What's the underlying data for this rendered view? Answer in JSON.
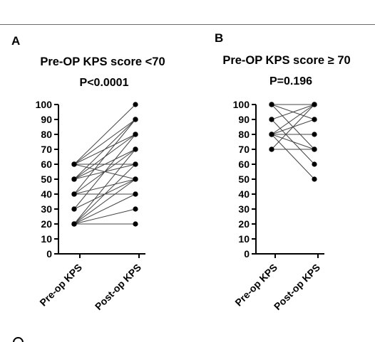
{
  "panels": [
    {
      "letter": "A",
      "title": "Pre-OP KPS score <70",
      "p_value": "P<0.0001"
    },
    {
      "letter": "B",
      "title": "Pre-OP KPS score ≥ 70",
      "p_value": "P=0.196"
    }
  ],
  "chart_data": [
    {
      "type": "line",
      "title": "Pre-OP KPS score <70",
      "subtitle": "P<0.0001",
      "categories": [
        "Pre-op KPS",
        "Post-op KPS"
      ],
      "y_ticks": [
        0,
        10,
        20,
        30,
        40,
        50,
        60,
        70,
        80,
        90,
        100
      ],
      "ylim": [
        0,
        100
      ],
      "grid": false,
      "pairs": [
        [
          60,
          100
        ],
        [
          60,
          90
        ],
        [
          60,
          80
        ],
        [
          60,
          60
        ],
        [
          60,
          50
        ],
        [
          50,
          90
        ],
        [
          50,
          80
        ],
        [
          50,
          70
        ],
        [
          50,
          60
        ],
        [
          40,
          90
        ],
        [
          40,
          70
        ],
        [
          40,
          50
        ],
        [
          40,
          40
        ],
        [
          30,
          80
        ],
        [
          30,
          50
        ],
        [
          20,
          70
        ],
        [
          20,
          60
        ],
        [
          20,
          50
        ],
        [
          20,
          40
        ],
        [
          20,
          30
        ],
        [
          20,
          20
        ]
      ]
    },
    {
      "type": "line",
      "title": "Pre-OP KPS score ≥ 70",
      "subtitle": "P=0.196",
      "categories": [
        "Pre-op KPS",
        "Post-op KPS"
      ],
      "y_ticks": [
        0,
        10,
        20,
        30,
        40,
        50,
        60,
        70,
        80,
        90,
        100
      ],
      "ylim": [
        0,
        100
      ],
      "grid": false,
      "pairs": [
        [
          100,
          100
        ],
        [
          100,
          90
        ],
        [
          100,
          70
        ],
        [
          90,
          100
        ],
        [
          90,
          60
        ],
        [
          80,
          100
        ],
        [
          80,
          90
        ],
        [
          80,
          80
        ],
        [
          80,
          70
        ],
        [
          80,
          50
        ],
        [
          70,
          100
        ],
        [
          70,
          70
        ]
      ]
    }
  ]
}
